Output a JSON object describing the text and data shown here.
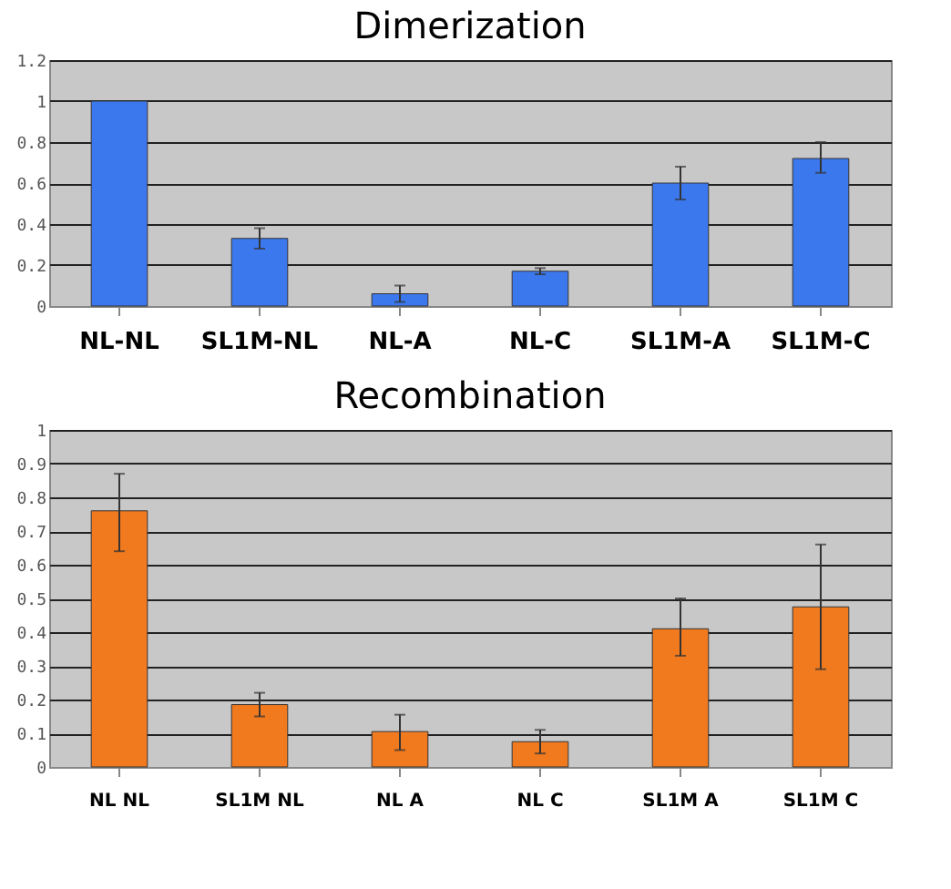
{
  "chart_data": [
    {
      "type": "bar",
      "title": "Dimerization",
      "categories": [
        "NL-NL",
        "SL1M-NL",
        "NL-A",
        "NL-C",
        "SL1M-A",
        "SL1M-C"
      ],
      "values": [
        1.0,
        0.33,
        0.06,
        0.17,
        0.6,
        0.72
      ],
      "errors": [
        null,
        [
          0.28,
          0.38
        ],
        [
          0.02,
          0.1
        ],
        [
          0.155,
          0.185
        ],
        [
          0.52,
          0.68
        ],
        [
          0.65,
          0.8
        ]
      ],
      "color": "#3b78ee",
      "ylim": [
        0,
        1.2
      ],
      "yticks": [
        0,
        0.2,
        0.4,
        0.6,
        0.8,
        1,
        1.2
      ],
      "grid": "y"
    },
    {
      "type": "bar",
      "title": "Recombination",
      "categories": [
        "NL NL",
        "SL1M NL",
        "NL A",
        "NL C",
        "SL1M A",
        "SL1M C"
      ],
      "values": [
        0.76,
        0.185,
        0.105,
        0.075,
        0.41,
        0.475
      ],
      "errors": [
        [
          0.64,
          0.87
        ],
        [
          0.15,
          0.22
        ],
        [
          0.05,
          0.155
        ],
        [
          0.04,
          0.11
        ],
        [
          0.33,
          0.5
        ],
        [
          0.29,
          0.66
        ]
      ],
      "color": "#f27a1e",
      "ylim": [
        0,
        1
      ],
      "yticks": [
        0,
        0.1,
        0.2,
        0.3,
        0.4,
        0.5,
        0.6,
        0.7,
        0.8,
        0.9,
        1
      ],
      "grid": "y"
    }
  ]
}
